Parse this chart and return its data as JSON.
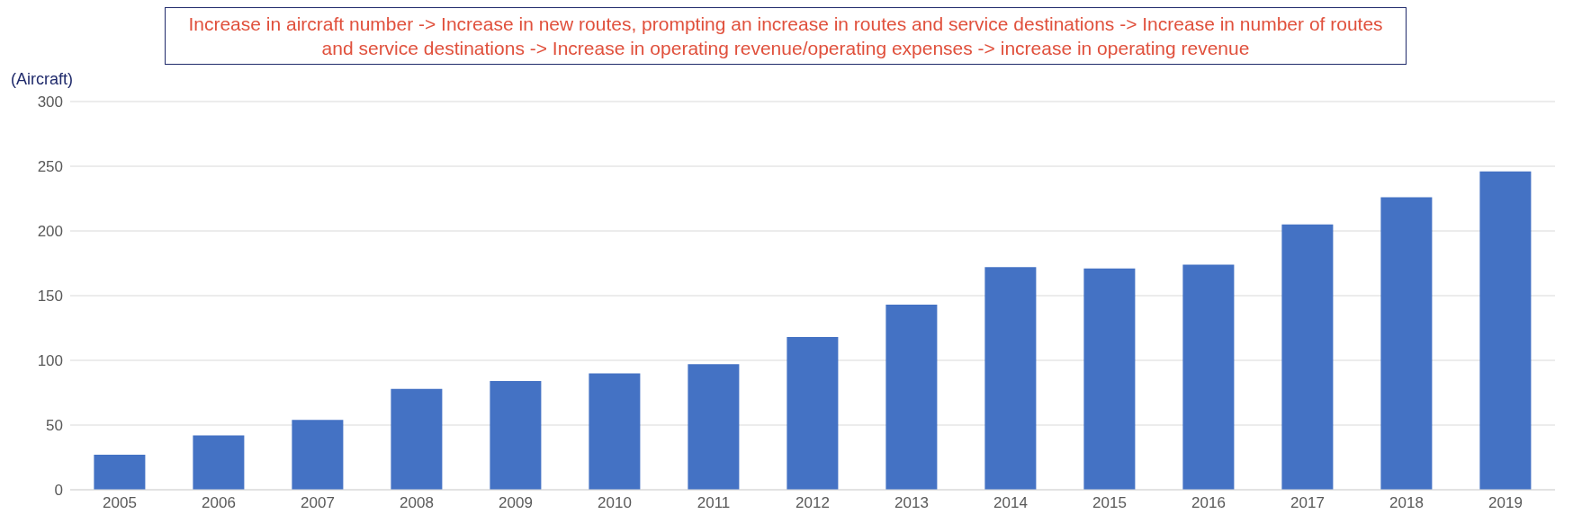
{
  "chart_data": {
    "type": "bar",
    "ylabel": "(Aircraft)",
    "annotations": [
      "Increase in aircraft number -> Increase in new routes, prompting an increase in routes and service destinations -> Increase in number of routes and service destinations -> Increase in operating revenue/operating expenses -> increase in operating revenue"
    ],
    "categories": [
      "2005",
      "2006",
      "2007",
      "2008",
      "2009",
      "2010",
      "2011",
      "2012",
      "2013",
      "2014",
      "2015",
      "2016",
      "2017",
      "2018",
      "2019"
    ],
    "values": [
      27,
      42,
      54,
      78,
      84,
      90,
      97,
      118,
      143,
      172,
      171,
      174,
      205,
      226,
      246
    ],
    "color": "#4472c4",
    "ylim": [
      0,
      300
    ],
    "yticks": [
      0,
      50,
      100,
      150,
      200,
      250,
      300
    ],
    "grid": "y"
  }
}
